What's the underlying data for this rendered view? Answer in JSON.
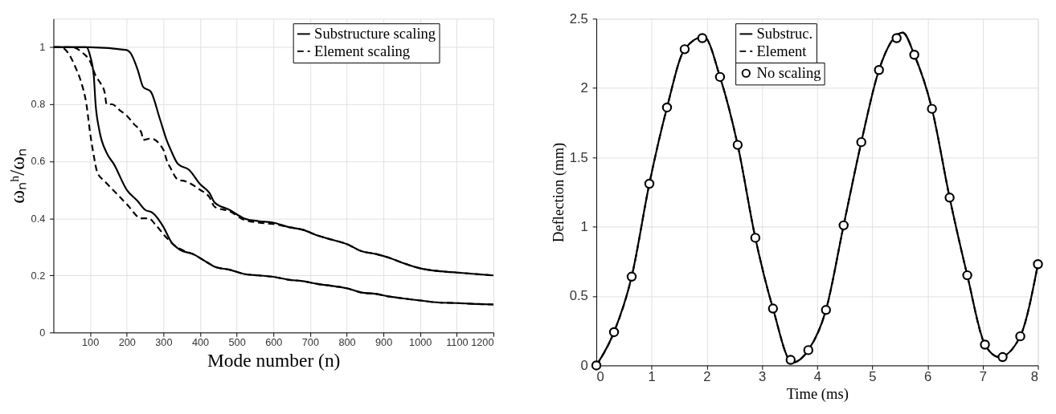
{
  "chart_data": [
    {
      "type": "line",
      "xlabel": "Mode number (n)",
      "ylabel": "ωₙʰ/ωₙ",
      "xlim": [
        0,
        1200
      ],
      "ylim": [
        0,
        1.1
      ],
      "xticks": [
        100,
        200,
        300,
        400,
        500,
        600,
        700,
        800,
        900,
        1000,
        1100,
        1200
      ],
      "yticks": [
        0,
        0.2,
        0.4,
        0.6,
        0.8,
        1
      ],
      "grid": true,
      "legend": "top right",
      "series": [
        {
          "name": "Substructure scaling",
          "color": "#000000",
          "line_style": "solid",
          "x": [
            1,
            100,
            200,
            210,
            230,
            245,
            265,
            290,
            310,
            320,
            340,
            370,
            400,
            425,
            440,
            480,
            520,
            560,
            600,
            640,
            680,
            720,
            760,
            800,
            840,
            880,
            920,
            950,
            1000,
            1050,
            1100,
            1150,
            1200
          ],
          "values": [
            1,
            1,
            0.99,
            0.98,
            0.92,
            0.86,
            0.845,
            0.75,
            0.67,
            0.64,
            0.59,
            0.57,
            0.52,
            0.49,
            0.455,
            0.43,
            0.4,
            0.39,
            0.385,
            0.37,
            0.36,
            0.34,
            0.325,
            0.31,
            0.285,
            0.275,
            0.26,
            0.245,
            0.225,
            0.215,
            0.21,
            0.205,
            0.2
          ]
        },
        {
          "name": "Element scaling",
          "color": "#000000",
          "line_style": "dashed",
          "x": [
            1,
            50,
            80,
            100,
            115,
            130,
            140,
            145,
            160,
            180,
            200,
            220,
            240,
            245,
            265,
            300,
            310,
            320,
            340,
            360,
            400,
            425,
            440,
            480,
            520,
            560,
            600,
            640,
            680,
            720,
            760,
            800,
            840,
            880,
            920,
            950,
            1000,
            1050,
            1100,
            1150,
            1200
          ],
          "values": [
            1,
            1,
            0.98,
            0.95,
            0.9,
            0.87,
            0.84,
            0.8,
            0.8,
            0.78,
            0.76,
            0.73,
            0.7,
            0.675,
            0.68,
            0.64,
            0.6,
            0.575,
            0.535,
            0.53,
            0.5,
            0.475,
            0.44,
            0.425,
            0.395,
            0.385,
            0.38,
            0.37,
            0.36,
            0.34,
            0.325,
            0.31,
            0.285,
            0.275,
            0.26,
            0.245,
            0.225,
            0.215,
            0.21,
            0.205,
            0.2
          ]
        },
        {
          "color": "#000000",
          "line_style": "solid",
          "x": [
            1,
            90,
            100,
            110,
            115,
            125,
            145,
            165,
            200,
            230,
            250,
            270,
            300,
            320,
            345,
            380,
            420,
            440,
            480,
            520,
            560,
            600,
            640,
            680,
            720,
            760,
            800,
            840,
            880,
            920,
            950,
            1000,
            1050,
            1100,
            1150,
            1200
          ],
          "values": [
            1,
            1,
            0.97,
            0.9,
            0.8,
            0.71,
            0.63,
            0.59,
            0.5,
            0.46,
            0.43,
            0.42,
            0.37,
            0.32,
            0.29,
            0.275,
            0.245,
            0.23,
            0.22,
            0.205,
            0.2,
            0.195,
            0.185,
            0.18,
            0.17,
            0.163,
            0.155,
            0.14,
            0.135,
            0.125,
            0.12,
            0.112,
            0.105,
            0.103,
            0.1,
            0.098
          ]
        },
        {
          "color": "#000000",
          "line_style": "dashed",
          "x": [
            1,
            20,
            40,
            60,
            75,
            90,
            100,
            110,
            120,
            140,
            170,
            200,
            240,
            260,
            280,
            310,
            330,
            350,
            380,
            420,
            440,
            480,
            520,
            560,
            600,
            640,
            680,
            720,
            760,
            800,
            840,
            880,
            920,
            950,
            1000,
            1050,
            1100,
            1150,
            1200
          ],
          "values": [
            1,
            1,
            0.98,
            0.93,
            0.88,
            0.8,
            0.7,
            0.62,
            0.56,
            0.53,
            0.49,
            0.45,
            0.4,
            0.4,
            0.375,
            0.33,
            0.305,
            0.29,
            0.275,
            0.245,
            0.23,
            0.22,
            0.205,
            0.2,
            0.195,
            0.185,
            0.18,
            0.17,
            0.163,
            0.155,
            0.14,
            0.135,
            0.125,
            0.12,
            0.112,
            0.105,
            0.103,
            0.1,
            0.098
          ]
        }
      ]
    },
    {
      "type": "line",
      "xlabel": "Time (ms)",
      "ylabel": "Deflection (mm)",
      "xlim": [
        0,
        8
      ],
      "ylim": [
        0,
        2.5
      ],
      "xticks": [
        0,
        1,
        2,
        3,
        4,
        5,
        6,
        7,
        8
      ],
      "yticks": [
        0,
        0.5,
        1,
        1.5,
        2,
        2.5
      ],
      "grid": true,
      "legend": "top",
      "series": [
        {
          "name": "Substruc.",
          "color": "#000000",
          "line_style": "solid",
          "x": [
            0,
            0.32,
            0.64,
            0.96,
            1.28,
            1.6,
            1.95,
            2.24,
            2.56,
            2.88,
            3.2,
            3.55,
            3.84,
            4.16,
            4.48,
            4.8,
            5.12,
            5.55,
            5.76,
            6.08,
            6.4,
            6.72,
            7.04,
            7.3,
            7.68,
            8
          ],
          "values": [
            0,
            0.24,
            0.64,
            1.31,
            1.86,
            2.28,
            2.37,
            2.08,
            1.59,
            0.92,
            0.41,
            0.02,
            0.11,
            0.4,
            1.01,
            1.61,
            2.13,
            2.4,
            2.24,
            1.85,
            1.21,
            0.65,
            0.15,
            0.06,
            0.21,
            0.73
          ]
        },
        {
          "name": "Element",
          "color": "#000000",
          "line_style": "dashed",
          "x": [
            0,
            0.32,
            0.64,
            0.96,
            1.28,
            1.6,
            1.95,
            2.24,
            2.56,
            2.88,
            3.2,
            3.55,
            3.84,
            4.16,
            4.48,
            4.8,
            5.12,
            5.55,
            5.76,
            6.08,
            6.4,
            6.72,
            7.04,
            7.3,
            7.68,
            8
          ],
          "values": [
            0,
            0.24,
            0.64,
            1.31,
            1.86,
            2.28,
            2.37,
            2.08,
            1.59,
            0.92,
            0.41,
            0.02,
            0.11,
            0.4,
            1.01,
            1.61,
            2.13,
            2.4,
            2.24,
            1.85,
            1.21,
            0.65,
            0.15,
            0.06,
            0.21,
            0.73
          ]
        },
        {
          "name": "No scaling",
          "type": "scatter",
          "marker": "circle",
          "color": "#000000",
          "x": [
            0,
            0.32,
            0.64,
            0.96,
            1.28,
            1.6,
            1.92,
            2.24,
            2.56,
            2.88,
            3.2,
            3.52,
            3.84,
            4.16,
            4.48,
            4.8,
            5.12,
            5.44,
            5.76,
            6.08,
            6.4,
            6.72,
            7.04,
            7.36,
            7.68,
            8
          ],
          "values": [
            0,
            0.24,
            0.64,
            1.31,
            1.86,
            2.28,
            2.36,
            2.08,
            1.59,
            0.92,
            0.41,
            0.04,
            0.11,
            0.4,
            1.01,
            1.61,
            2.13,
            2.36,
            2.24,
            1.85,
            1.21,
            0.65,
            0.15,
            0.06,
            0.21,
            0.73
          ]
        }
      ]
    }
  ]
}
